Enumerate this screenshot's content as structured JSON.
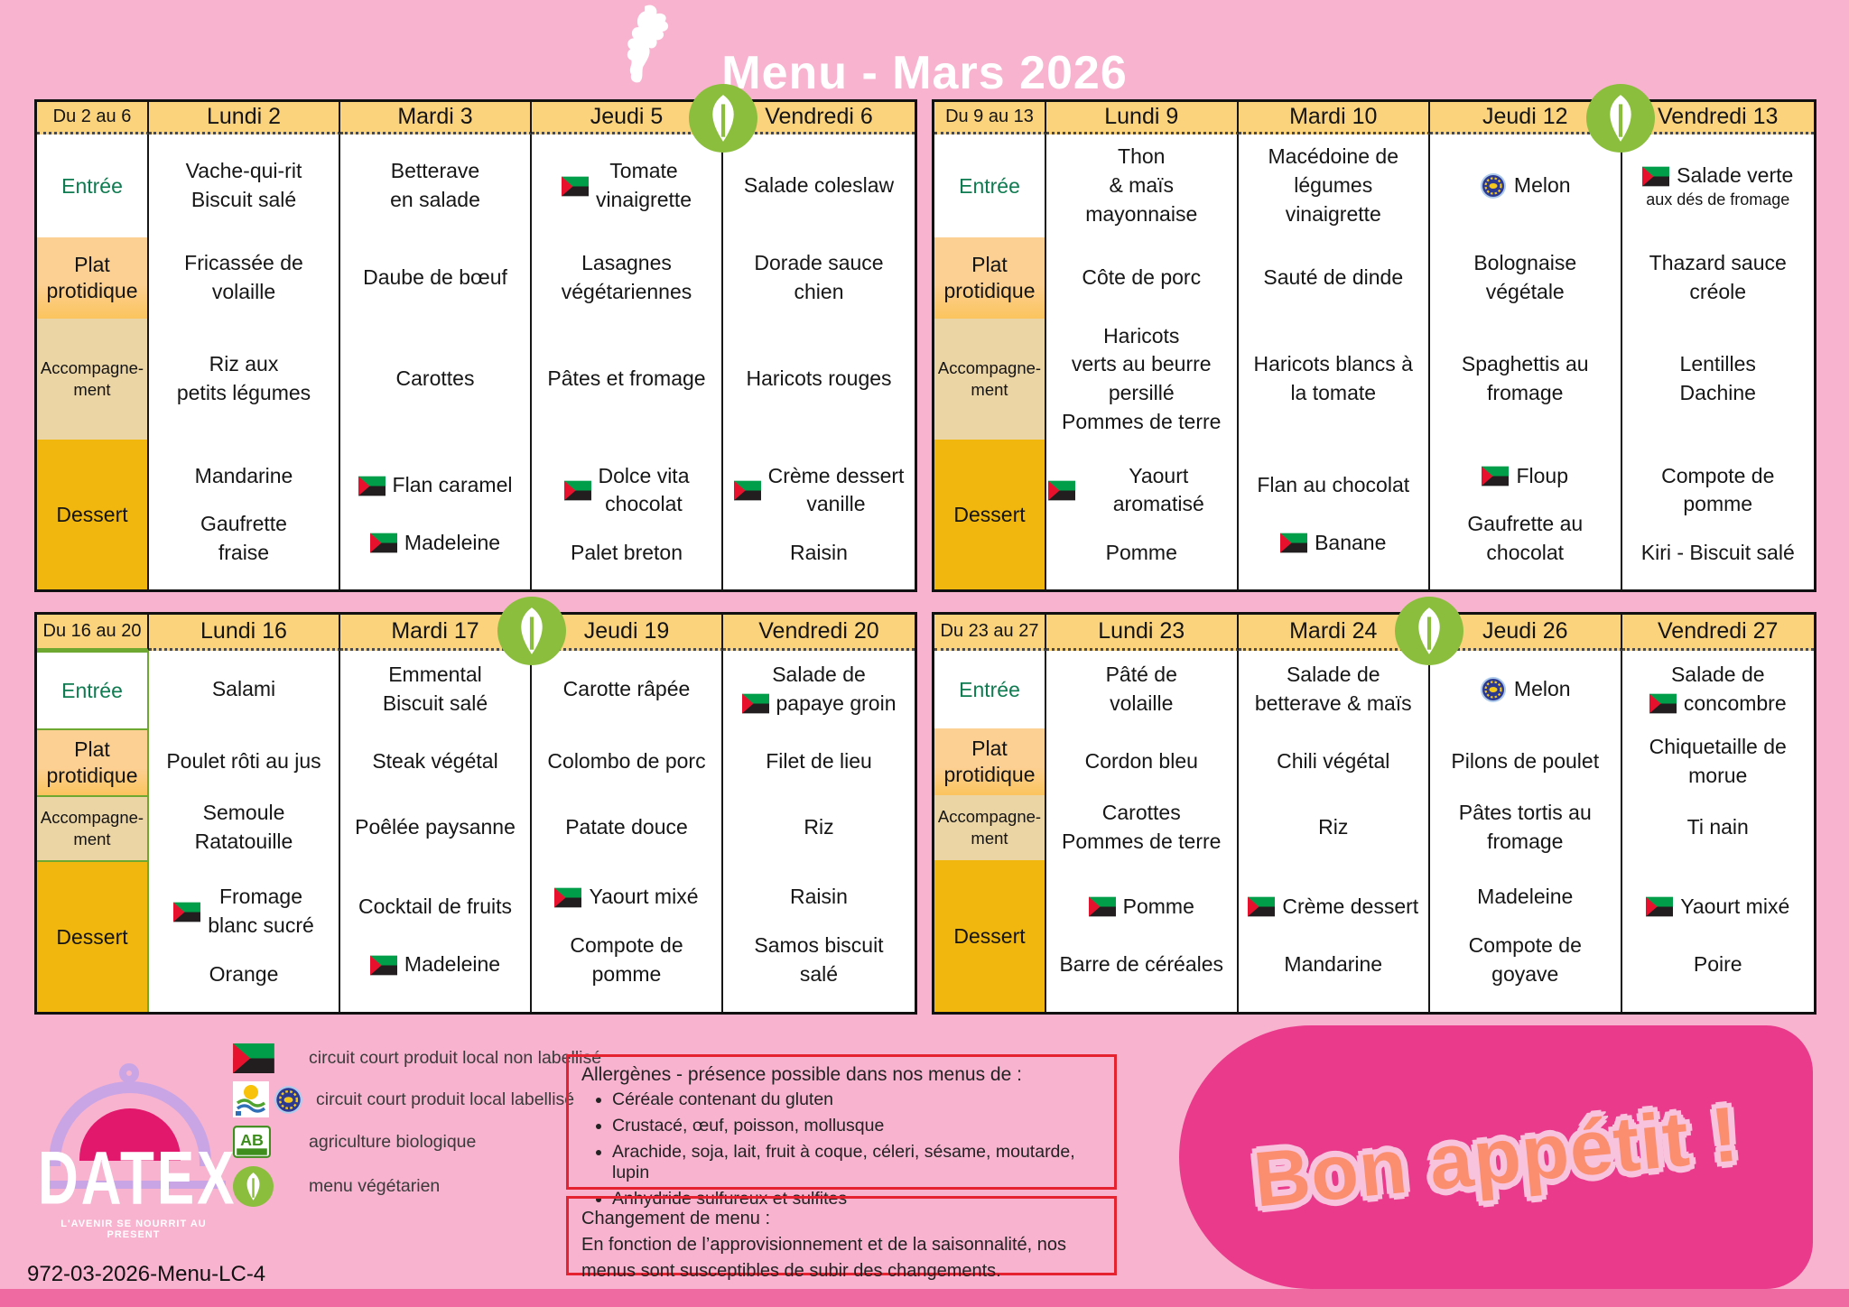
{
  "page": {
    "title": "Menu - Mars 2026",
    "code": "972-03-2026-Menu-LC-4",
    "bg": "#F8B3CF",
    "accent_pink": "#E93A8C",
    "header_gold": "#FCD37D",
    "dessert_gold": "#F1B70E"
  },
  "row_labels": {
    "entree": "Entrée",
    "plat": "Plat\nprotidique",
    "accomp": "Accompagne-\nment",
    "dessert": "Dessert"
  },
  "tables": [
    {
      "range": "Du 2 au 6",
      "days": [
        "Lundi 2",
        "Mardi 3",
        "Jeudi 5",
        "Vendredi 6"
      ],
      "veg_day_index": 2,
      "green": false,
      "rows": {
        "entree": [
          [
            {
              "text": "Vache-qui-rit\nBiscuit salé"
            }
          ],
          [
            {
              "text": "Betterave\nen salade"
            }
          ],
          [
            {
              "icon": "flag",
              "text": "Tomate\nvinaigrette"
            }
          ],
          [
            {
              "text": "Salade coleslaw"
            }
          ]
        ],
        "plat": [
          [
            {
              "text": "Fricassée de\nvolaille"
            }
          ],
          [
            {
              "text": "Daube de bœuf"
            }
          ],
          [
            {
              "text": "Lasagnes\nvégétariennes"
            }
          ],
          [
            {
              "text": "Dorade sauce\nchien"
            }
          ]
        ],
        "accomp": [
          [
            {
              "text": "Riz aux\npetits légumes"
            }
          ],
          [
            {
              "text": "Carottes"
            }
          ],
          [
            {
              "text": "Pâtes et fromage"
            }
          ],
          [
            {
              "text": "Haricots rouges"
            }
          ]
        ],
        "dessert": [
          [
            {
              "text": "Mandarine"
            },
            {
              "text": "Gaufrette\nfraise"
            }
          ],
          [
            {
              "icon": "flag",
              "text": "Flan caramel"
            },
            {
              "icon": "flag",
              "text": "Madeleine"
            }
          ],
          [
            {
              "icon": "flag",
              "text": "Dolce vita\nchocolat"
            },
            {
              "text": "Palet breton"
            }
          ],
          [
            {
              "icon": "flag",
              "text": "Crème dessert\nvanille"
            },
            {
              "text": "Raisin"
            }
          ]
        ]
      }
    },
    {
      "range": "Du 9 au 13",
      "days": [
        "Lundi 9",
        "Mardi 10",
        "Jeudi 12",
        "Vendredi 13"
      ],
      "veg_day_index": 2,
      "green": false,
      "rows": {
        "entree": [
          [
            {
              "text": "Thon\n& maïs\nmayonnaise"
            }
          ],
          [
            {
              "text": "Macédoine de\nlégumes\nvinaigrette"
            }
          ],
          [
            {
              "icon": "label",
              "text": "Melon"
            }
          ],
          [
            {
              "icon": "flag",
              "text": "Salade verte",
              "sub": "aux dés de fromage"
            }
          ]
        ],
        "plat": [
          [
            {
              "text": "Côte de porc"
            }
          ],
          [
            {
              "text": "Sauté de dinde"
            }
          ],
          [
            {
              "text": "Bolognaise\nvégétale"
            }
          ],
          [
            {
              "text": "Thazard sauce\ncréole"
            }
          ]
        ],
        "accomp": [
          [
            {
              "text": "Haricots\nverts au beurre\npersillé\nPommes de terre"
            }
          ],
          [
            {
              "text": "Haricots blancs à\nla tomate"
            }
          ],
          [
            {
              "text": "Spaghettis au\nfromage"
            }
          ],
          [
            {
              "text": "Lentilles\nDachine"
            }
          ]
        ],
        "dessert": [
          [
            {
              "icon": "flag",
              "text": "Yaourt aromatisé"
            },
            {
              "text": "Pomme"
            }
          ],
          [
            {
              "text": "Flan au chocolat"
            },
            {
              "icon": "flag",
              "text": "Banane"
            }
          ],
          [
            {
              "icon": "flag",
              "text": "Floup"
            },
            {
              "text": "Gaufrette au\nchocolat"
            }
          ],
          [
            {
              "text": "Compote de\npomme"
            },
            {
              "text": "Kiri - Biscuit salé"
            }
          ]
        ]
      }
    },
    {
      "range": "Du 16 au 20",
      "days": [
        "Lundi 16",
        "Mardi 17",
        "Jeudi 19",
        "Vendredi 20"
      ],
      "veg_day_index": 1,
      "green": true,
      "rows": {
        "entree": [
          [
            {
              "text": "Salami"
            }
          ],
          [
            {
              "text": "Emmental\nBiscuit salé"
            }
          ],
          [
            {
              "text": "Carotte râpée"
            }
          ],
          [
            {
              "text": "Salade de",
              "line2": "papaye groin",
              "line2_icon": "flag"
            }
          ]
        ],
        "plat": [
          [
            {
              "text": "Poulet rôti au jus"
            }
          ],
          [
            {
              "text": "Steak végétal"
            }
          ],
          [
            {
              "text": "Colombo de porc"
            }
          ],
          [
            {
              "text": "Filet de lieu"
            }
          ]
        ],
        "accomp": [
          [
            {
              "text": "Semoule\nRatatouille"
            }
          ],
          [
            {
              "text": "Poêlée paysanne"
            }
          ],
          [
            {
              "text": "Patate douce"
            }
          ],
          [
            {
              "text": "Riz"
            }
          ]
        ],
        "dessert": [
          [
            {
              "icon": "flag",
              "text": "Fromage\nblanc sucré"
            },
            {
              "text": "Orange"
            }
          ],
          [
            {
              "text": "Cocktail de fruits"
            },
            {
              "icon": "flag",
              "text": "Madeleine"
            }
          ],
          [
            {
              "icon": "flag",
              "text": "Yaourt mixé"
            },
            {
              "text": "Compote de\npomme"
            }
          ],
          [
            {
              "text": "Raisin"
            },
            {
              "text": "Samos biscuit\nsalé"
            }
          ]
        ]
      }
    },
    {
      "range": "Du 23 au 27",
      "days": [
        "Lundi 23",
        "Mardi 24",
        "Jeudi 26",
        "Vendredi 27"
      ],
      "veg_day_index": 1,
      "green": false,
      "rows": {
        "entree": [
          [
            {
              "text": "Pâté de\nvolaille"
            }
          ],
          [
            {
              "text": "Salade de\nbetterave & maïs"
            }
          ],
          [
            {
              "icon": "label",
              "text": "Melon"
            }
          ],
          [
            {
              "text": "Salade de",
              "line2": "concombre",
              "line2_icon": "flag"
            }
          ]
        ],
        "plat": [
          [
            {
              "text": "Cordon bleu"
            }
          ],
          [
            {
              "text": "Chili végétal"
            }
          ],
          [
            {
              "text": "Pilons de poulet"
            }
          ],
          [
            {
              "text": "Chiquetaille de\nmorue"
            }
          ]
        ],
        "accomp": [
          [
            {
              "text": "Carottes\nPommes de terre"
            }
          ],
          [
            {
              "text": "Riz"
            }
          ],
          [
            {
              "text": "Pâtes tortis au\nfromage"
            }
          ],
          [
            {
              "text": "Ti nain"
            }
          ]
        ],
        "dessert": [
          [
            {
              "icon": "flag",
              "text": "Pomme"
            },
            {
              "text": "Barre de céréales"
            }
          ],
          [
            {
              "icon": "flag",
              "text": "Crème dessert"
            },
            {
              "text": "Mandarine"
            }
          ],
          [
            {
              "text": "Madeleine"
            },
            {
              "text": "Compote de\ngoyave"
            }
          ],
          [
            {
              "icon": "flag",
              "text": "Yaourt mixé"
            },
            {
              "text": "Poire"
            }
          ]
        ]
      }
    }
  ],
  "legend": {
    "items": [
      {
        "icon": "flag",
        "label": "circuit court produit local non labellisé"
      },
      {
        "icon": "local-label",
        "label": "circuit court produit local labellisé"
      },
      {
        "icon": "ab",
        "label": "agriculture biologique"
      },
      {
        "icon": "leaf",
        "label": "menu végétarien"
      }
    ]
  },
  "allergens": {
    "title": "Allergènes - présence possible dans nos menus de :",
    "items": [
      "Céréale contenant du gluten",
      "Crustacé, œuf, poisson, mollusque",
      "Arachide, soja, lait, fruit à coque, céleri, sésame, moutarde, lupin",
      "Anhydride sulfureux et sulfites"
    ]
  },
  "change": {
    "title": "Changement de menu :",
    "body": "En fonction de l’approvisionnement et de la saisonnalité, nos menus sont susceptibles de subir des changements."
  },
  "datex": {
    "name": "DATEX",
    "tagline": "L'AVENIR SE NOURRIT AU PRESENT"
  },
  "footer": {
    "bon_appetit": "Bon appétit !"
  }
}
